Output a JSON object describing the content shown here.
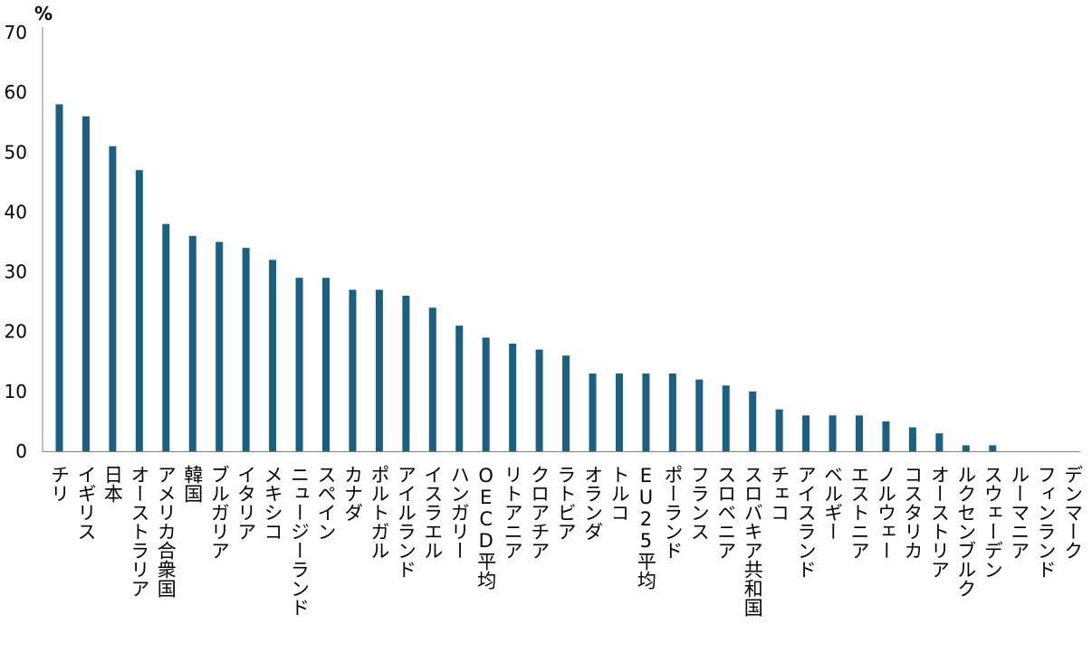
{
  "chart_data": {
    "type": "bar",
    "ylabel": "%",
    "ylim": [
      0,
      70
    ],
    "yticks": [
      0,
      10,
      20,
      30,
      40,
      50,
      60,
      70
    ],
    "grid": false,
    "bar_color": "#1b6080",
    "categories": [
      "チリ",
      "イギリス",
      "日本",
      "オーストラリア",
      "アメリカ合衆国",
      "韓国",
      "ブルガリア",
      "イタリア",
      "メキシコ",
      "ニュージーランド",
      "スペイン",
      "カナダ",
      "ポルトガル",
      "アイルランド",
      "イスラエル",
      "ハンガリー",
      "OECD平均",
      "リトアニア",
      "クロアチア",
      "ラトビア",
      "オランダ",
      "トルコ",
      "EU25平均",
      "ポーランド",
      "フランス",
      "スロベニア",
      "スロバキア共和国",
      "チェコ",
      "アイスランド",
      "ベルギー",
      "エストニア",
      "ノルウェー",
      "コスタリカ",
      "オーストリア",
      "ルクセンブルク",
      "スウェーデン",
      "ルーマニア",
      "フィンランド",
      "デンマーク"
    ],
    "values": [
      58,
      56,
      51,
      47,
      38,
      36,
      35,
      34,
      32,
      29,
      29,
      27,
      27,
      26,
      24,
      21,
      19,
      18,
      17,
      16,
      13,
      13,
      13,
      13,
      12,
      11,
      10,
      7,
      6,
      6,
      6,
      5,
      4,
      3,
      1,
      1,
      0,
      0,
      0
    ]
  }
}
